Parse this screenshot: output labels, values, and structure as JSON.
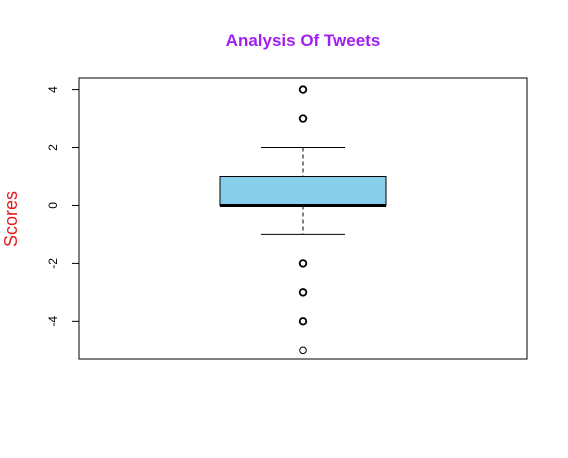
{
  "chart_data": {
    "type": "boxplot",
    "title": "Analysis Of Tweets",
    "xlabel": "",
    "ylabel": "Scores",
    "ylim": [
      -5.3,
      4.4
    ],
    "yticks": [
      4,
      2,
      0,
      -2,
      -4
    ],
    "ytick_labels": [
      "4",
      "2",
      "0",
      "-2",
      "-4"
    ],
    "box": {
      "q1": 0,
      "median": 0,
      "q3": 1,
      "whisker_low": -1,
      "whisker_high": 2
    },
    "outliers": [
      4,
      3,
      -2,
      -3,
      -4,
      -5
    ],
    "grid": false,
    "colors": {
      "title": "#A020F0",
      "ylabel": "#E41A1C",
      "box_fill": "#87CEEB",
      "axis": "#000000"
    }
  }
}
